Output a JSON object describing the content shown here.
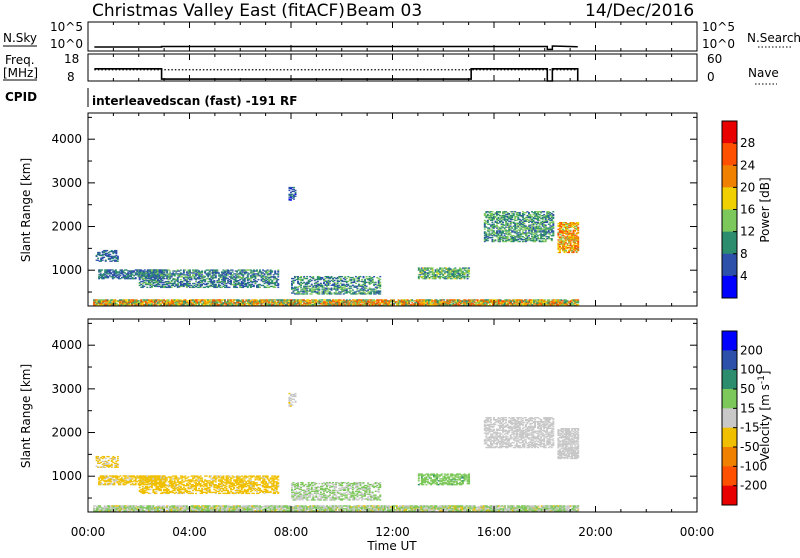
{
  "header": {
    "title": "Christmas Valley East (fitACF)",
    "beam": "Beam 03",
    "date": "14/Dec/2016"
  },
  "nsky_panel": {
    "left_label": "N.Sky",
    "right_label": "N.Search",
    "tick_hi": "10^5",
    "tick_lo": "10^0",
    "right_tick_hi": "10^5",
    "right_tick_lo": "10^0"
  },
  "freq_panel": {
    "left_label_1": "Freq.",
    "left_label_2": "[MHz]",
    "right_label": "Nave",
    "left_ticks": [
      "18",
      "8"
    ],
    "right_ticks": [
      "60",
      "0"
    ],
    "freq_axis_range": [
      8,
      18
    ],
    "nave_axis_range": [
      0,
      60
    ]
  },
  "cpid": {
    "label": "CPID",
    "text": "interleavedscan (fast) -191 RF"
  },
  "x_axis": {
    "label": "Time UT",
    "range_hours": [
      0,
      24
    ],
    "tick_labels": [
      "00:00",
      "04:00",
      "08:00",
      "12:00",
      "16:00",
      "20:00",
      "00:00"
    ]
  },
  "chart_data": [
    {
      "type": "line",
      "name": "nsky-nsearch",
      "x_hours": [
        0.25,
        2.9,
        2.9,
        18.1,
        18.1,
        18.3,
        18.3,
        19.3
      ],
      "nsky_log10": [
        0.25,
        0.25,
        0.35,
        0.35,
        -0.2,
        -0.2,
        0.45,
        0.3
      ]
    },
    {
      "type": "line",
      "name": "frequency-nave",
      "freq_x_hours": [
        0.25,
        2.9,
        2.9,
        15.1,
        15.1,
        18.1,
        18.1,
        18.3,
        18.3,
        19.3,
        19.3
      ],
      "freq_mhz": [
        12.5,
        12.5,
        8.7,
        8.7,
        12.5,
        12.5,
        8.0,
        8.0,
        12.5,
        12.5,
        8.0
      ],
      "nave_x_hours": [
        0.25,
        19.3
      ],
      "nave": [
        25,
        25
      ]
    },
    {
      "type": "heatmap",
      "name": "power",
      "ylabel": "Slant Range [km]",
      "y_range_km": [
        180,
        4600
      ],
      "y_ticks": [
        "1000",
        "2000",
        "3000",
        "4000"
      ],
      "colorbar_label": "Power [dB]",
      "colorbar_ticks": [
        "4",
        "8",
        "12",
        "16",
        "20",
        "24",
        "28"
      ],
      "colorbar_range": [
        0,
        32
      ],
      "colors": [
        "#0000ff",
        "#2d50aa",
        "#2c8c6e",
        "#7dc85a",
        "#f0d000",
        "#f08000",
        "#ff5000",
        "#e80000"
      ],
      "regions": [
        {
          "t": [
            0.2,
            19.3
          ],
          "r": [
            180,
            320
          ],
          "v": 18,
          "jit": 10,
          "dens": 0.85
        },
        {
          "t": [
            0.4,
            3.0
          ],
          "r": [
            800,
            1000
          ],
          "v": 8,
          "jit": 4,
          "dens": 0.6
        },
        {
          "t": [
            0.3,
            1.2
          ],
          "r": [
            1200,
            1450
          ],
          "v": 7,
          "jit": 3,
          "dens": 0.5
        },
        {
          "t": [
            2.0,
            7.5
          ],
          "r": [
            600,
            1000
          ],
          "v": 9,
          "jit": 5,
          "dens": 0.55
        },
        {
          "t": [
            8.0,
            11.5
          ],
          "r": [
            450,
            850
          ],
          "v": 10,
          "jit": 5,
          "dens": 0.5
        },
        {
          "t": [
            13.0,
            15.0
          ],
          "r": [
            800,
            1050
          ],
          "v": 12,
          "jit": 5,
          "dens": 0.6
        },
        {
          "t": [
            15.6,
            18.3
          ],
          "r": [
            1650,
            2350
          ],
          "v": 11,
          "jit": 5,
          "dens": 0.55
        },
        {
          "t": [
            18.5,
            19.3
          ],
          "r": [
            1400,
            2100
          ],
          "v": 20,
          "jit": 6,
          "dens": 0.7
        },
        {
          "t": [
            7.9,
            8.2
          ],
          "r": [
            2600,
            2900
          ],
          "v": 6,
          "jit": 3,
          "dens": 0.4
        }
      ]
    },
    {
      "type": "heatmap",
      "name": "velocity",
      "ylabel": "Slant Range [km]",
      "y_range_km": [
        180,
        4600
      ],
      "y_ticks": [
        "1000",
        "2000",
        "3000",
        "4000"
      ],
      "colorbar_label": "Velocity [m s^-1]",
      "colorbar_ticks": [
        "200",
        "100",
        "50",
        "15",
        "-15",
        "-50",
        "-100",
        "-200"
      ],
      "colorbar_range": [
        -250,
        250
      ],
      "colors": [
        "#0000ff",
        "#2d50aa",
        "#2c8c6e",
        "#7dc85a",
        "#c8c8c8",
        "#f0c000",
        "#f08000",
        "#ff5000",
        "#e80000"
      ],
      "regions": [
        {
          "t": [
            0.2,
            19.3
          ],
          "r": [
            180,
            320
          ],
          "v": -20,
          "jit": 60,
          "dens": 0.85
        },
        {
          "t": [
            0.4,
            3.0
          ],
          "r": [
            800,
            1000
          ],
          "v": 40,
          "jit": 20,
          "dens": 0.6
        },
        {
          "t": [
            0.3,
            1.2
          ],
          "r": [
            1200,
            1450
          ],
          "v": 35,
          "jit": 15,
          "dens": 0.5
        },
        {
          "t": [
            2.0,
            7.5
          ],
          "r": [
            600,
            1000
          ],
          "v": 45,
          "jit": 20,
          "dens": 0.55
        },
        {
          "t": [
            8.0,
            11.5
          ],
          "r": [
            450,
            850
          ],
          "v": -30,
          "jit": 30,
          "dens": 0.5
        },
        {
          "t": [
            13.0,
            15.0
          ],
          "r": [
            800,
            1050
          ],
          "v": -60,
          "jit": 25,
          "dens": 0.6
        },
        {
          "t": [
            15.6,
            18.3
          ],
          "r": [
            1650,
            2350
          ],
          "v": 0,
          "jit": 8,
          "dens": 0.55
        },
        {
          "t": [
            18.5,
            19.3
          ],
          "r": [
            1400,
            2100
          ],
          "v": 0,
          "jit": 8,
          "dens": 0.7
        },
        {
          "t": [
            7.9,
            8.2
          ],
          "r": [
            2600,
            2900
          ],
          "v": 20,
          "jit": 10,
          "dens": 0.4
        }
      ]
    }
  ]
}
